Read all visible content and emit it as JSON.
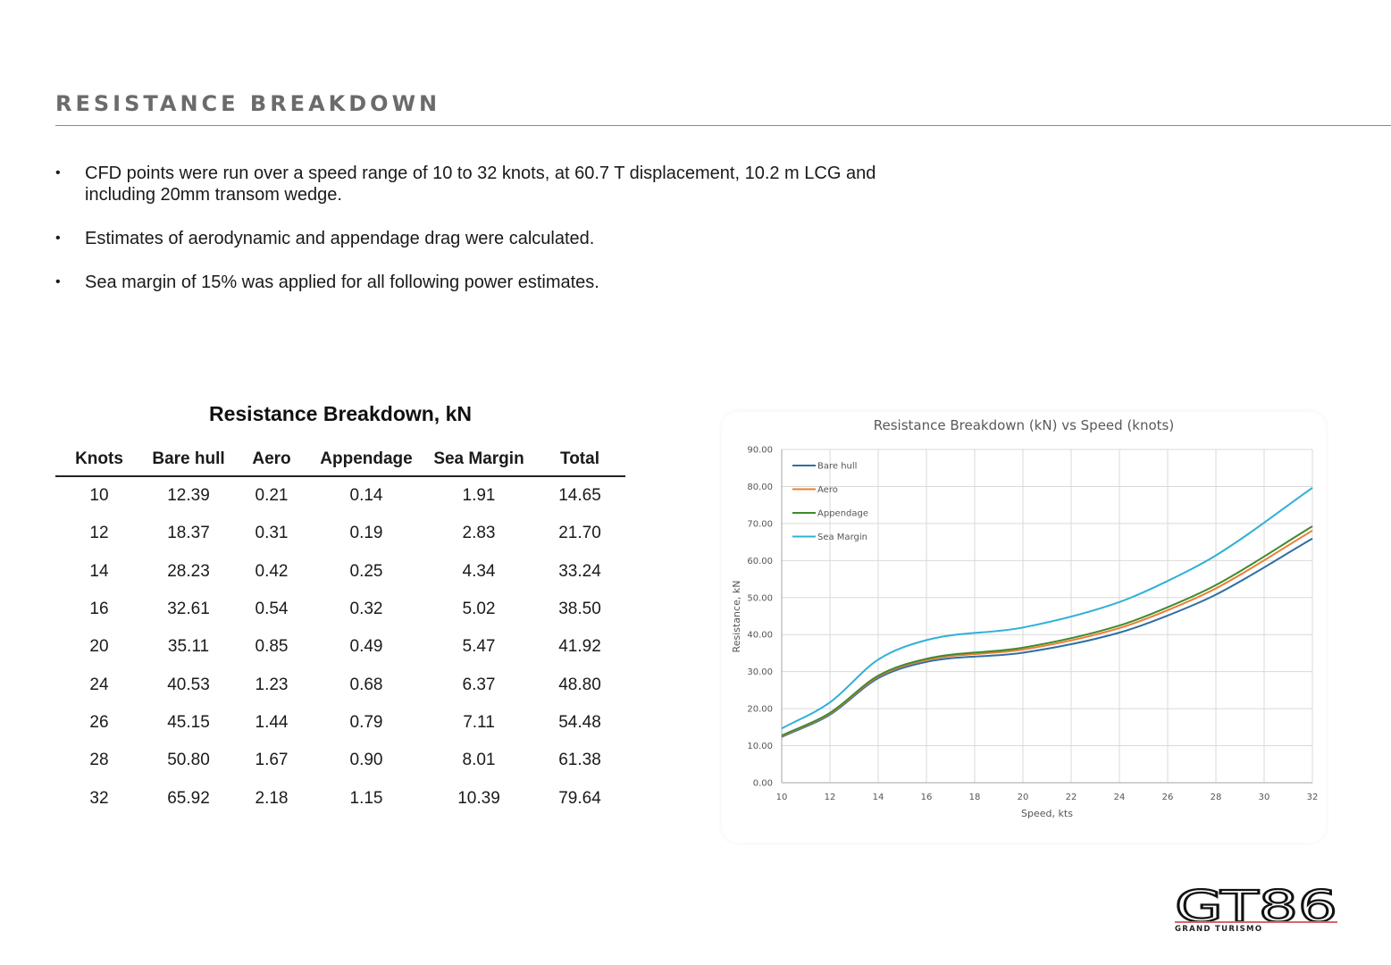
{
  "page": {
    "title": "RESISTANCE BREAKDOWN",
    "bullets": [
      "CFD points were run over a speed range of 10 to 32 knots, at 60.7 T displacement, 10.2 m LCG and including 20mm transom wedge.",
      "Estimates of aerodynamic and appendage drag were calculated.",
      "Sea margin of 15% was applied for all following power estimates."
    ],
    "bullet_glyph": "•"
  },
  "table": {
    "title": "Resistance Breakdown, kN",
    "headers": [
      "Knots",
      "Bare hull",
      "Aero",
      "Appendage",
      "Sea Margin",
      "Total"
    ],
    "rows": [
      [
        "10",
        "12.39",
        "0.21",
        "0.14",
        "1.91",
        "14.65"
      ],
      [
        "12",
        "18.37",
        "0.31",
        "0.19",
        "2.83",
        "21.70"
      ],
      [
        "14",
        "28.23",
        "0.42",
        "0.25",
        "4.34",
        "33.24"
      ],
      [
        "16",
        "32.61",
        "0.54",
        "0.32",
        "5.02",
        "38.50"
      ],
      [
        "20",
        "35.11",
        "0.85",
        "0.49",
        "5.47",
        "41.92"
      ],
      [
        "24",
        "40.53",
        "1.23",
        "0.68",
        "6.37",
        "48.80"
      ],
      [
        "26",
        "45.15",
        "1.44",
        "0.79",
        "7.11",
        "54.48"
      ],
      [
        "28",
        "50.80",
        "1.67",
        "0.90",
        "8.01",
        "61.38"
      ],
      [
        "32",
        "65.92",
        "2.18",
        "1.15",
        "10.39",
        "79.64"
      ]
    ]
  },
  "chart_data": {
    "type": "line",
    "title": "Resistance Breakdown (kN) vs Speed (knots)",
    "xlabel": "Speed, kts",
    "ylabel": "Resistance, kN",
    "xlim": [
      10,
      32
    ],
    "ylim": [
      0,
      90
    ],
    "xticks": [
      10,
      12,
      14,
      16,
      18,
      20,
      22,
      24,
      26,
      28,
      30,
      32
    ],
    "yticks": [
      0,
      10,
      20,
      30,
      40,
      50,
      60,
      70,
      80,
      90
    ],
    "ytick_labels": [
      "0.00",
      "10.00",
      "20.00",
      "30.00",
      "40.00",
      "50.00",
      "60.00",
      "70.00",
      "80.00",
      "90.00"
    ],
    "grid": true,
    "legend": "top-left",
    "x": [
      10,
      12,
      14,
      16,
      20,
      24,
      26,
      28,
      32
    ],
    "series": [
      {
        "name": "Bare hull",
        "color": "#2e6fa6",
        "values": [
          12.39,
          18.37,
          28.23,
          32.61,
          35.11,
          40.53,
          45.15,
          50.8,
          65.92
        ]
      },
      {
        "name": "Aero",
        "color": "#ed7d31",
        "values": [
          12.6,
          18.68,
          28.65,
          33.15,
          35.96,
          41.76,
          46.59,
          52.47,
          68.1
        ]
      },
      {
        "name": "Appendage",
        "color": "#3f8a2f",
        "values": [
          12.74,
          18.87,
          28.9,
          33.47,
          36.45,
          42.44,
          47.38,
          53.37,
          69.25
        ]
      },
      {
        "name": "Sea Margin",
        "color": "#2fb0d8",
        "values": [
          14.65,
          21.7,
          33.24,
          38.5,
          41.92,
          48.8,
          54.48,
          61.38,
          79.64
        ]
      }
    ]
  },
  "logo": {
    "brand": "GT86",
    "subtitle": "GRAND TURISMO",
    "colors": {
      "gt": "#b5b5b5",
      "num": "#111111",
      "accent": "#d9646c"
    }
  }
}
